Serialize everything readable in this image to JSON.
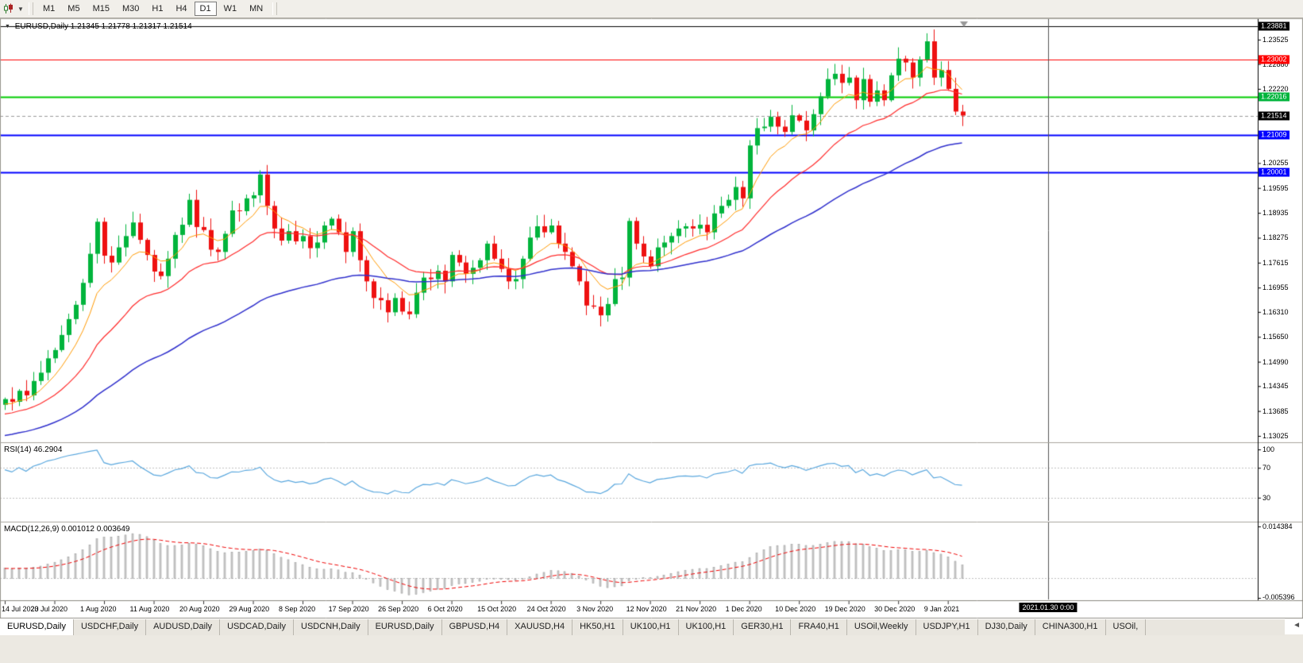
{
  "toolbar": {
    "timeframes": [
      {
        "label": "M1",
        "active": false
      },
      {
        "label": "M5",
        "active": false
      },
      {
        "label": "M15",
        "active": false
      },
      {
        "label": "M30",
        "active": false
      },
      {
        "label": "H1",
        "active": false
      },
      {
        "label": "H4",
        "active": false
      },
      {
        "label": "D1",
        "active": true
      },
      {
        "label": "W1",
        "active": false
      },
      {
        "label": "MN",
        "active": false
      }
    ]
  },
  "chart": {
    "header": {
      "symbol": "EURUSD,Daily",
      "ohlc": "1.21345 1.21778 1.21317 1.21514"
    },
    "price_axis": {
      "plain_labels": [
        "1.23525",
        "1.22880",
        "1.22220",
        "1.20255",
        "1.19595",
        "1.18935",
        "1.18275",
        "1.17615",
        "1.16955",
        "1.16310",
        "1.15650",
        "1.14990",
        "1.14345",
        "1.13685",
        "1.13025"
      ],
      "markers": [
        {
          "text": "1.23881",
          "price": 1.23881,
          "label_bg": "#000000",
          "line_color": "#000000",
          "line_style": "solid",
          "line_width": 1
        },
        {
          "text": "1.23002",
          "price": 1.23002,
          "label_bg": "#ff0000",
          "line_color": "#ff0000",
          "line_style": "solid",
          "line_width": 1
        },
        {
          "text": "1.22016",
          "price": 1.22016,
          "label_bg": "#00b43c",
          "line_color": "#00cc00",
          "line_style": "solid",
          "line_width": 2
        },
        {
          "text": "1.21514",
          "price": 1.21514,
          "label_bg": "#000000",
          "line_color": "#999999",
          "line_style": "dash",
          "line_width": 1
        },
        {
          "text": "1.21009",
          "price": 1.21009,
          "label_bg": "#0000ff",
          "line_color": "#0000ff",
          "line_style": "solid",
          "line_width": 2
        },
        {
          "text": "1.20001",
          "price": 1.20001,
          "label_bg": "#0000ff",
          "line_color": "#0000ff",
          "line_style": "solid",
          "line_width": 2
        }
      ]
    },
    "vline_label": "2021.01.30 0:00"
  },
  "rsi": {
    "label": "RSI(14) 46.2904",
    "axis_labels": [
      "100",
      "70",
      "30"
    ],
    "levels": [
      70,
      30
    ],
    "current": 46.2904
  },
  "macd": {
    "label": "MACD(12,26,9) 0.001012 0.003649",
    "axis_top": "0.014384",
    "axis_bottom": "-0.005396",
    "values": [
      0.001012,
      0.003649
    ]
  },
  "tabs": {
    "items": [
      {
        "label": "EURUSD,Daily",
        "active": true
      },
      {
        "label": "USDCHF,Daily",
        "active": false
      },
      {
        "label": "AUDUSD,Daily",
        "active": false
      },
      {
        "label": "USDCAD,Daily",
        "active": false
      },
      {
        "label": "USDCNH,Daily",
        "active": false
      },
      {
        "label": "EURUSD,Daily",
        "active": false
      },
      {
        "label": "GBPUSD,H4",
        "active": false
      },
      {
        "label": "XAUUSD,H4",
        "active": false
      },
      {
        "label": "HK50,H1",
        "active": false
      },
      {
        "label": "UK100,H1",
        "active": false
      },
      {
        "label": "UK100,H1",
        "active": false
      },
      {
        "label": "GER30,H1",
        "active": false
      },
      {
        "label": "FRA40,H1",
        "active": false
      },
      {
        "label": "USOil,Weekly",
        "active": false
      },
      {
        "label": "USDJPY,H1",
        "active": false
      },
      {
        "label": "DJ30,Daily",
        "active": false
      },
      {
        "label": "CHINA300,H1",
        "active": false
      },
      {
        "label": "USOil,",
        "active": false
      }
    ],
    "scroll_icon": "◄"
  },
  "chart_data": {
    "type": "candlestick",
    "symbol": "EURUSD",
    "timeframe": "Daily",
    "y_range": {
      "min": 1.13025,
      "max": 1.23881
    },
    "x_labels": [
      "14 Jul 2020",
      "23 Jul 2020",
      "1 Aug 2020",
      "11 Aug 2020",
      "20 Aug 2020",
      "29 Aug 2020",
      "8 Sep 2020",
      "17 Sep 2020",
      "26 Sep 2020",
      "6 Oct 2020",
      "15 Oct 2020",
      "24 Oct 2020",
      "3 Nov 2020",
      "12 Nov 2020",
      "21 Nov 2020",
      "1 Dec 2020",
      "10 Dec 2020",
      "19 Dec 2020",
      "30 Dec 2020",
      "9 Jan 2021"
    ],
    "closes": [
      1.14,
      1.1393,
      1.1422,
      1.141,
      1.1448,
      1.147,
      1.1508,
      1.153,
      1.157,
      1.1612,
      1.165,
      1.1708,
      1.1785,
      1.187,
      1.178,
      1.1762,
      1.1802,
      1.1832,
      1.1868,
      1.1822,
      1.1782,
      1.1738,
      1.1726,
      1.1772,
      1.1835,
      1.1862,
      1.1928,
      1.1856,
      1.1848,
      1.1796,
      1.179,
      1.1838,
      1.19,
      1.1898,
      1.1932,
      1.194,
      1.1995,
      1.1912,
      1.1852,
      1.182,
      1.1845,
      1.1818,
      1.1832,
      1.18,
      1.1815,
      1.186,
      1.1878,
      1.1842,
      1.179,
      1.1845,
      1.1768,
      1.1712,
      1.1668,
      1.1662,
      1.163,
      1.1668,
      1.1632,
      1.1625,
      1.1682,
      1.1722,
      1.1718,
      1.174,
      1.1712,
      1.1782,
      1.1762,
      1.1732,
      1.1748,
      1.1768,
      1.1812,
      1.1772,
      1.1745,
      1.1712,
      1.1718,
      1.1772,
      1.1828,
      1.1858,
      1.1842,
      1.186,
      1.1812,
      1.179,
      1.1752,
      1.1712,
      1.1648,
      1.1645,
      1.1622,
      1.1652,
      1.1718,
      1.1722,
      1.1872,
      1.1812,
      1.1778,
      1.1752,
      1.1802,
      1.1815,
      1.1832,
      1.1852,
      1.1858,
      1.1852,
      1.1862,
      1.1842,
      1.1892,
      1.1912,
      1.1928,
      1.1962,
      1.1932,
      1.2072,
      1.2118,
      1.2122,
      1.2148,
      1.2122,
      1.2108,
      1.2152,
      1.2138,
      1.2112,
      1.2155,
      1.2202,
      1.2248,
      1.2262,
      1.2238,
      1.2252,
      1.2192,
      1.2248,
      1.2188,
      1.2218,
      1.2192,
      1.2258,
      1.2302,
      1.2292,
      1.2252,
      1.23,
      1.2348,
      1.2252,
      1.2272,
      1.2222,
      1.2162,
      1.21514
    ],
    "last_ohlc": {
      "open": 1.21345,
      "high": 1.21778,
      "low": 1.21317,
      "close": 1.21514
    },
    "overlays": {
      "hlines": [
        1.23881,
        1.23002,
        1.22016,
        1.21009,
        1.20001
      ],
      "bid_line": 1.21514
    },
    "indicators": [
      {
        "name": "RSI",
        "period": 14,
        "current": 46.2904
      },
      {
        "name": "MACD",
        "params": "12,26,9",
        "current": [
          0.001012,
          0.003649
        ]
      }
    ]
  },
  "colors": {
    "candle_up": "#00b43c",
    "candle_down": "#ee1111",
    "ma_fast": "#ff9900",
    "ma_mid": "#ff2a2a",
    "ma_slow": "#2f2fcc",
    "rsi_line": "#58a6dd",
    "macd_signal": "#ee0000",
    "macd_hist": "#cfcfcf",
    "macd_hist_edge": "#909090",
    "hline_red": "#ff0000",
    "hline_green": "#00cc00",
    "hline_blue": "#0000ff"
  }
}
